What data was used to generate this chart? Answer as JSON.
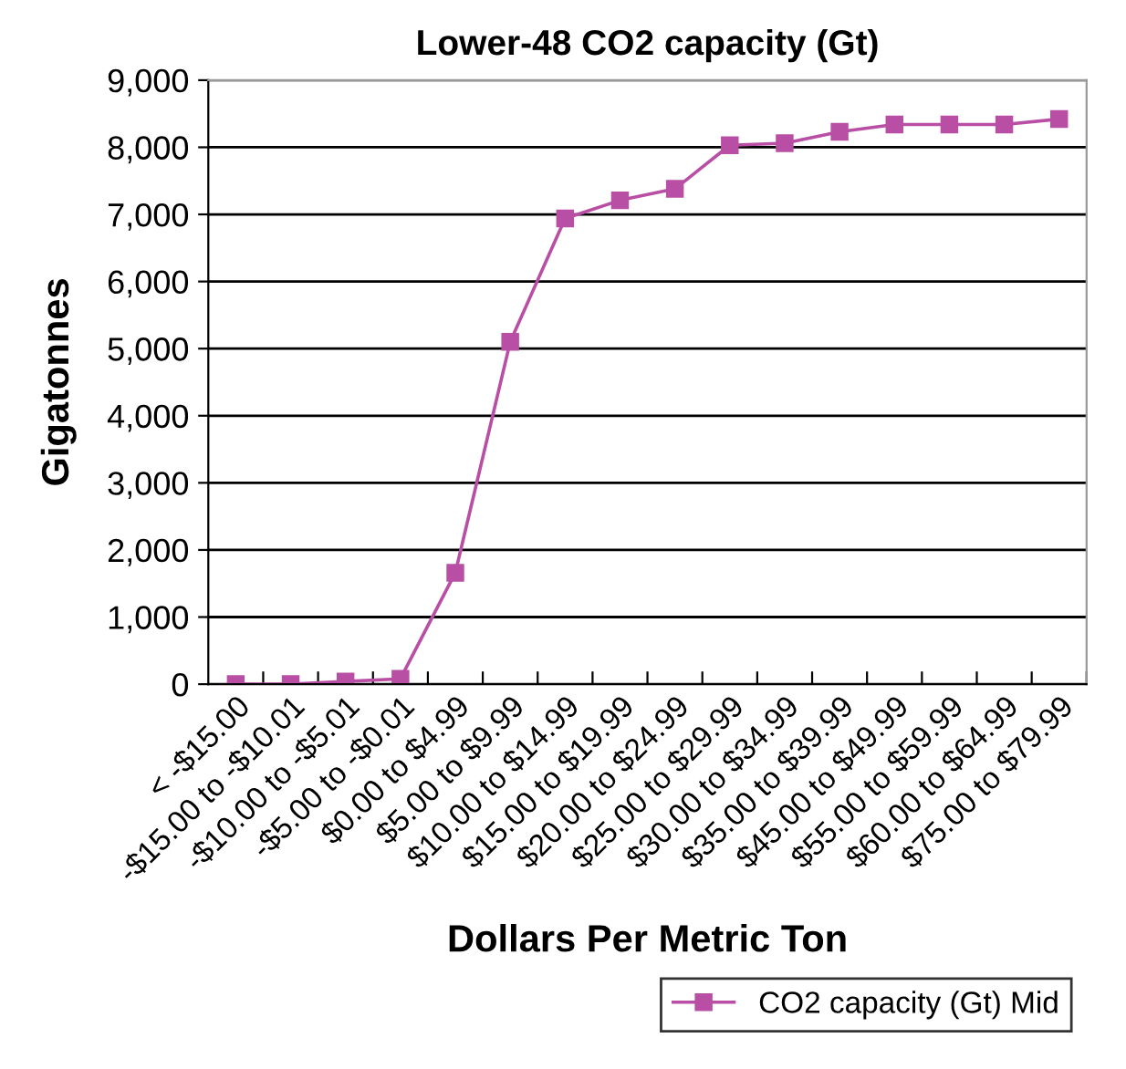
{
  "chart_data": {
    "type": "line",
    "title": "Lower-48 CO2 capacity (Gt)",
    "xlabel": "Dollars Per Metric Ton",
    "ylabel": "Gigatonnes",
    "categories": [
      "< -$15.00",
      "-$15.00 to -$10.01",
      "-$10.00 to -$5.01",
      "-$5.00 to -$0.01",
      "$0.00 to $4.99",
      "$5.00 to $9.99",
      "$10.00 to $14.99",
      "$15.00 to $19.99",
      "$20.00 to $24.99",
      "$25.00 to $29.99",
      "$30.00 to $34.99",
      "$35.00 to $39.99",
      "$45.00 to $49.99",
      "$55.00 to $59.99",
      "$60.00 to $64.99",
      "$75.00 to $79.99"
    ],
    "series": [
      {
        "name": "CO2 capacity (Gt) Mid",
        "color": "#b94fa5",
        "values": [
          0,
          0,
          40,
          80,
          1660,
          5100,
          6940,
          7210,
          7380,
          8030,
          8060,
          8230,
          8340,
          8340,
          8340,
          8420
        ]
      }
    ],
    "ylim": [
      0,
      9000
    ],
    "yticks": [
      {
        "value": 0,
        "label": "0"
      },
      {
        "value": 1000,
        "label": "1,000"
      },
      {
        "value": 2000,
        "label": "2,000"
      },
      {
        "value": 3000,
        "label": "3,000"
      },
      {
        "value": 4000,
        "label": "4,000"
      },
      {
        "value": 5000,
        "label": "5,000"
      },
      {
        "value": 6000,
        "label": "6,000"
      },
      {
        "value": 7000,
        "label": "7,000"
      },
      {
        "value": 8000,
        "label": "8,000"
      },
      {
        "value": 9000,
        "label": "9,000"
      }
    ],
    "grid": "y",
    "legend": "bottom right",
    "marker": "square",
    "line_style": "solid"
  }
}
